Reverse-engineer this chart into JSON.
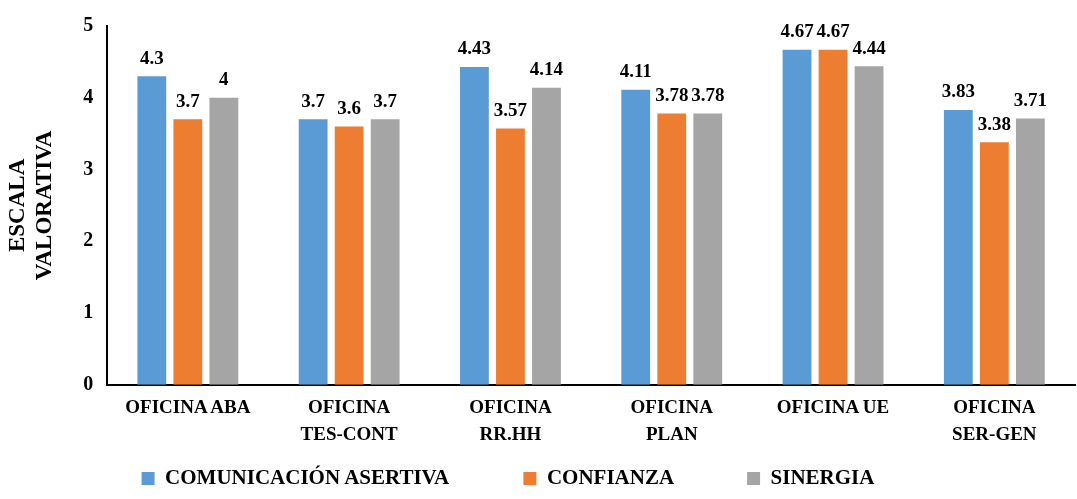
{
  "chart_data": {
    "type": "bar",
    "ylabel": "ESCALA\nVALORATIVA",
    "categories": [
      "OFICINA ABA",
      "OFICINA\nTES-CONT",
      "OFICINA\nRR.HH",
      "OFICINA\nPLAN",
      "OFICINA UE",
      "OFICINA\nSER-GEN"
    ],
    "series": [
      {
        "name": "COMUNICACIÓN ASERTIVA",
        "color": "#5b9bd5",
        "values": [
          4.3,
          3.7,
          4.43,
          4.11,
          4.67,
          3.83
        ]
      },
      {
        "name": "CONFIANZA",
        "color": "#ed7d31",
        "values": [
          3.7,
          3.6,
          3.57,
          3.78,
          4.67,
          3.38
        ]
      },
      {
        "name": "SINERGIA",
        "color": "#a5a5a5",
        "values": [
          4,
          3.7,
          4.14,
          3.78,
          4.44,
          3.71
        ]
      }
    ],
    "ylim": [
      0,
      5
    ],
    "yticks": [
      0,
      1,
      2,
      3,
      4,
      5
    ],
    "data_labels": true,
    "legend": "bottom",
    "grid": false
  }
}
